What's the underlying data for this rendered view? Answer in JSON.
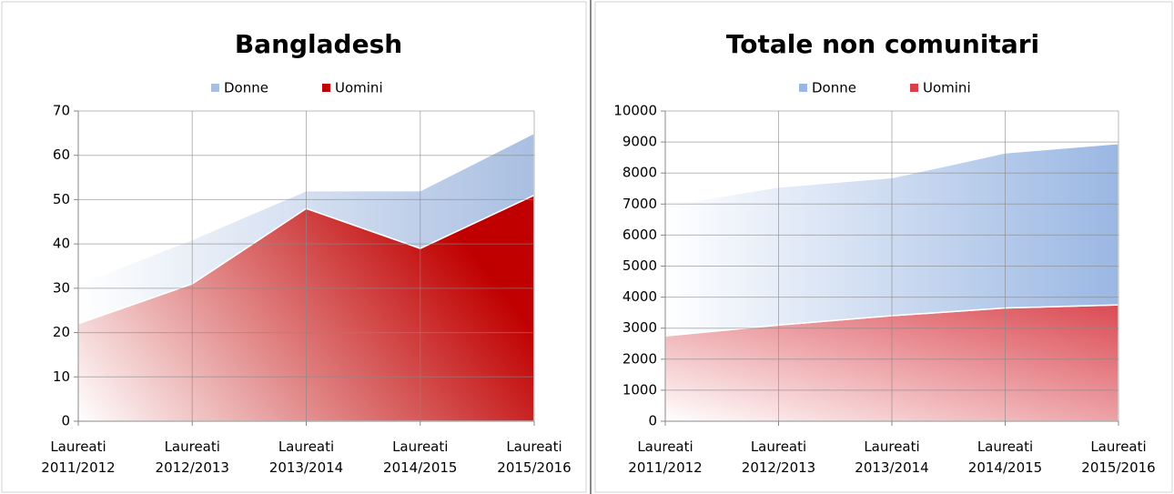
{
  "charts": [
    {
      "chart_data": {
        "type": "stacked-area",
        "title": "Bangladesh",
        "categories": [
          "Laureati\n2011/2012",
          "Laureati\n2012/2013",
          "Laureati\n2013/2014",
          "Laureati\n2014/2015",
          "Laureati\n2015/2016"
        ],
        "series": [
          {
            "name": "Uomini",
            "color": "#c00000",
            "values": [
              22,
              31,
              48,
              39,
              51
            ]
          },
          {
            "name": "Donne",
            "color": "#a9bfe2",
            "values": [
              9,
              10,
              4,
              13,
              14
            ]
          }
        ],
        "legend_order": [
          "Donne",
          "Uomini"
        ],
        "ylim": [
          0,
          70
        ],
        "yticks": [
          0,
          10,
          20,
          30,
          40,
          50,
          60,
          70
        ],
        "grid": true,
        "legend": "top"
      }
    },
    {
      "chart_data": {
        "type": "stacked-area",
        "title": "Totale non comunitari",
        "categories": [
          "Laureati\n2011/2012",
          "Laureati\n2012/2013",
          "Laureati\n2013/2014",
          "Laureati\n2014/2015",
          "Laureati\n2015/2016"
        ],
        "series": [
          {
            "name": "Uomini",
            "color": "#d9414a",
            "values": [
              2750,
              3100,
              3400,
              3650,
              3750
            ]
          },
          {
            "name": "Donne",
            "color": "#9ab7e3",
            "values": [
              4200,
              4450,
              4450,
              5000,
              5200
            ]
          }
        ],
        "legend_order": [
          "Donne",
          "Uomini"
        ],
        "ylim": [
          0,
          10000
        ],
        "yticks": [
          0,
          1000,
          2000,
          3000,
          4000,
          5000,
          6000,
          7000,
          8000,
          9000,
          10000
        ],
        "grid": true,
        "legend": "top"
      }
    }
  ]
}
